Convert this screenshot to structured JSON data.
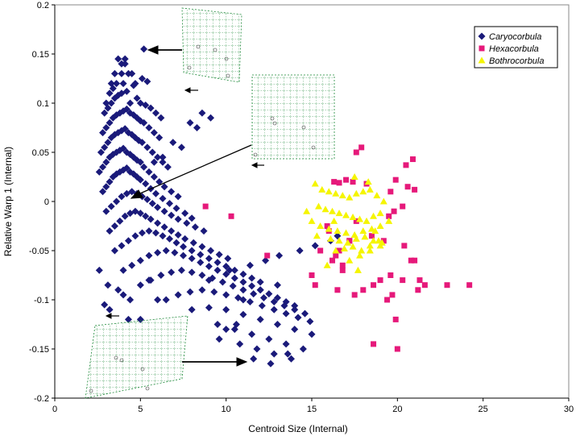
{
  "chart_data": {
    "type": "scatter",
    "xlabel": "Centroid Size (Internal)",
    "ylabel": "Relative Warp 1 (Internal)",
    "xlim": [
      0,
      30
    ],
    "ylim": [
      -0.2,
      0.2
    ],
    "x_ticks": [
      "0",
      "5",
      "10",
      "15",
      "20",
      "25",
      "30"
    ],
    "y_ticks": [
      "0.2",
      "0.15",
      "0.1",
      "0.05",
      "0",
      "-0.05",
      "-0.1",
      "-0.15",
      "-0.2"
    ],
    "grid": false,
    "legend_position": "top-right",
    "series": [
      {
        "name": "Caryocorbula",
        "marker": "diamond",
        "color": "#1a1a7a",
        "count_note": "dense cloud; representative sample of points",
        "x": [
          5.2,
          3.9,
          4.1,
          3.6,
          4.3,
          5.1,
          4.7,
          3.2,
          3.0,
          3.4,
          4.0,
          4.6,
          5.4,
          2.9,
          3.1,
          3.3,
          3.5,
          3.7,
          3.9,
          4.2,
          4.4,
          4.8,
          5.0,
          5.3,
          5.6,
          5.9,
          6.2,
          2.8,
          3.0,
          3.2,
          3.4,
          3.6,
          3.8,
          4.0,
          4.2,
          4.4,
          4.6,
          4.8,
          5.0,
          5.2,
          5.5,
          5.8,
          6.1,
          2.7,
          2.9,
          3.1,
          3.3,
          3.5,
          3.7,
          3.9,
          4.1,
          4.3,
          4.5,
          4.7,
          4.9,
          5.1,
          5.4,
          5.7,
          6.0,
          6.3,
          6.6,
          2.6,
          2.8,
          3.0,
          3.2,
          3.4,
          3.6,
          3.8,
          4.0,
          4.2,
          4.4,
          4.6,
          4.8,
          5.0,
          5.2,
          5.5,
          5.8,
          6.1,
          6.4,
          6.8,
          7.2,
          2.8,
          3.0,
          3.2,
          3.4,
          3.6,
          3.8,
          4.0,
          4.2,
          4.4,
          4.6,
          4.8,
          5.0,
          5.3,
          5.6,
          5.9,
          6.3,
          6.7,
          7.1,
          7.6,
          8.0,
          3.0,
          3.3,
          3.6,
          3.9,
          4.2,
          4.5,
          4.8,
          5.1,
          5.4,
          5.7,
          6.0,
          6.4,
          6.8,
          7.2,
          7.7,
          8.2,
          8.7,
          3.2,
          3.5,
          3.8,
          4.1,
          4.4,
          4.7,
          5.0,
          5.3,
          5.6,
          6.0,
          6.4,
          6.8,
          7.2,
          7.6,
          8.1,
          8.6,
          9.1,
          9.6,
          10.1,
          3.5,
          3.9,
          4.3,
          4.7,
          5.1,
          5.5,
          5.9,
          6.3,
          6.7,
          7.1,
          7.5,
          8.0,
          8.5,
          9.0,
          9.5,
          10.0,
          10.5,
          11.0,
          11.5,
          12.0,
          4.0,
          4.5,
          5.0,
          5.5,
          6.0,
          6.5,
          7.0,
          7.5,
          8.0,
          8.5,
          9.0,
          9.5,
          10.0,
          10.5,
          11.0,
          11.5,
          12.0,
          12.5,
          13.0,
          13.5,
          14.0,
          5.0,
          5.6,
          6.2,
          6.8,
          7.4,
          8.0,
          8.6,
          9.2,
          9.8,
          10.4,
          11.0,
          11.6,
          12.2,
          12.8,
          13.4,
          14.0,
          14.6,
          6.5,
          7.2,
          7.9,
          8.6,
          9.3,
          10.0,
          10.7,
          11.4,
          12.1,
          12.8,
          13.5,
          14.2,
          14.9,
          8.0,
          9.0,
          10.0,
          11.0,
          12.0,
          13.0,
          14.0,
          15.0,
          9.5,
          10.5,
          11.5,
          12.5,
          13.5,
          14.5,
          10.8,
          11.8,
          12.8,
          13.8,
          11.6,
          12.6,
          13.6,
          8.6,
          9.1,
          7.9,
          8.3,
          6.9,
          7.4,
          6.3,
          5.8,
          2.6,
          4.4,
          3.1,
          5.5,
          3.7,
          4.0,
          2.9,
          3.2,
          4.3,
          5.0,
          6.0,
          9.0,
          10.2,
          11.4,
          12.3,
          13.1,
          14.3,
          15.2,
          16.1,
          16.5,
          11.0,
          12.0,
          13.0,
          10.0,
          9.6,
          10.6,
          4.5,
          3.9,
          3.7,
          4.1,
          3.5,
          3.3
        ],
        "y": [
          0.155,
          0.14,
          0.145,
          0.12,
          0.13,
          0.125,
          0.12,
          0.11,
          0.1,
          0.115,
          0.12,
          0.118,
          0.122,
          0.09,
          0.095,
          0.1,
          0.105,
          0.108,
          0.11,
          0.112,
          0.1,
          0.105,
          0.1,
          0.098,
          0.095,
          0.09,
          0.085,
          0.07,
          0.075,
          0.08,
          0.085,
          0.088,
          0.09,
          0.092,
          0.094,
          0.09,
          0.088,
          0.085,
          0.082,
          0.08,
          0.075,
          0.07,
          0.065,
          0.05,
          0.055,
          0.06,
          0.065,
          0.068,
          0.07,
          0.072,
          0.074,
          0.07,
          0.068,
          0.065,
          0.062,
          0.06,
          0.055,
          0.05,
          0.045,
          0.04,
          0.035,
          0.03,
          0.035,
          0.04,
          0.045,
          0.048,
          0.05,
          0.052,
          0.054,
          0.05,
          0.048,
          0.045,
          0.042,
          0.04,
          0.035,
          0.03,
          0.025,
          0.02,
          0.015,
          0.01,
          0.005,
          0.01,
          0.015,
          0.02,
          0.025,
          0.028,
          0.03,
          0.032,
          0.034,
          0.03,
          0.028,
          0.025,
          0.022,
          0.018,
          0.013,
          0.008,
          0.003,
          -0.002,
          -0.007,
          -0.012,
          -0.017,
          -0.01,
          -0.005,
          0.0,
          0.005,
          0.008,
          0.01,
          0.008,
          0.005,
          0.002,
          -0.002,
          -0.006,
          -0.01,
          -0.014,
          -0.018,
          -0.022,
          -0.026,
          -0.03,
          -0.03,
          -0.025,
          -0.02,
          -0.015,
          -0.012,
          -0.01,
          -0.012,
          -0.015,
          -0.018,
          -0.022,
          -0.026,
          -0.03,
          -0.034,
          -0.038,
          -0.042,
          -0.046,
          -0.05,
          -0.054,
          -0.058,
          -0.05,
          -0.045,
          -0.04,
          -0.035,
          -0.032,
          -0.03,
          -0.032,
          -0.035,
          -0.038,
          -0.042,
          -0.046,
          -0.05,
          -0.054,
          -0.058,
          -0.062,
          -0.066,
          -0.07,
          -0.074,
          -0.078,
          -0.082,
          -0.07,
          -0.065,
          -0.06,
          -0.055,
          -0.052,
          -0.05,
          -0.052,
          -0.055,
          -0.058,
          -0.062,
          -0.066,
          -0.07,
          -0.074,
          -0.078,
          -0.082,
          -0.086,
          -0.09,
          -0.094,
          -0.098,
          -0.102,
          -0.106,
          -0.085,
          -0.08,
          -0.075,
          -0.072,
          -0.07,
          -0.072,
          -0.075,
          -0.078,
          -0.082,
          -0.086,
          -0.09,
          -0.094,
          -0.098,
          -0.102,
          -0.106,
          -0.11,
          -0.114,
          -0.1,
          -0.095,
          -0.092,
          -0.09,
          -0.092,
          -0.095,
          -0.098,
          -0.102,
          -0.106,
          -0.11,
          -0.114,
          -0.118,
          -0.122,
          -0.11,
          -0.108,
          -0.11,
          -0.115,
          -0.12,
          -0.125,
          -0.13,
          -0.135,
          -0.125,
          -0.13,
          -0.135,
          -0.14,
          -0.145,
          -0.15,
          -0.145,
          -0.15,
          -0.155,
          -0.16,
          -0.16,
          -0.165,
          -0.155,
          0.09,
          0.085,
          0.08,
          0.075,
          0.06,
          0.055,
          0.045,
          0.04,
          -0.07,
          -0.1,
          -0.085,
          -0.08,
          -0.09,
          -0.095,
          -0.105,
          -0.11,
          -0.12,
          -0.12,
          -0.1,
          -0.08,
          -0.07,
          -0.065,
          -0.06,
          -0.055,
          -0.05,
          -0.045,
          -0.04,
          -0.035,
          -0.1,
          -0.09,
          -0.085,
          -0.13,
          -0.14,
          -0.125,
          0.13,
          0.13,
          0.145,
          0.14,
          0.13,
          0.12
        ]
      },
      {
        "name": "Hexacorbula",
        "marker": "square",
        "color": "#e6197a",
        "x": [
          17.9,
          17.6,
          20.9,
          20.5,
          19.9,
          20.6,
          21.0,
          19.6,
          18.2,
          17.4,
          17.0,
          16.6,
          16.3,
          15.9,
          17.2,
          20.3,
          19.8,
          19.5,
          16.6,
          16.4,
          16.2,
          16.8,
          17.6,
          18.5,
          19.2,
          20.4,
          21.0,
          21.6,
          21.2,
          20.3,
          19.6,
          19.0,
          18.6,
          18.0,
          17.5,
          15.5,
          15.2,
          15.0,
          20.8,
          21.3,
          22.9,
          24.2,
          19.7,
          19.4,
          18.6,
          20.0,
          16.5,
          8.8,
          10.3,
          12.4,
          16.8,
          19.9,
          16.0,
          17.2
        ],
        "y": [
          0.055,
          0.05,
          0.043,
          0.037,
          0.022,
          0.015,
          0.012,
          0.01,
          0.018,
          0.02,
          0.022,
          0.019,
          0.02,
          -0.025,
          -0.04,
          -0.005,
          -0.01,
          -0.015,
          -0.05,
          -0.055,
          -0.06,
          -0.065,
          -0.02,
          -0.035,
          -0.04,
          -0.045,
          -0.06,
          -0.085,
          -0.09,
          -0.08,
          -0.075,
          -0.08,
          -0.085,
          -0.09,
          -0.095,
          -0.05,
          -0.085,
          -0.075,
          -0.06,
          -0.08,
          -0.085,
          -0.085,
          -0.095,
          -0.1,
          -0.145,
          -0.15,
          -0.09,
          -0.005,
          -0.015,
          -0.055,
          -0.07,
          -0.12,
          -0.03,
          -0.04
        ]
      },
      {
        "name": "Bothrocorbula",
        "marker": "triangle",
        "color": "#f5f500",
        "x": [
          15.2,
          15.6,
          16.0,
          16.4,
          16.8,
          17.2,
          17.6,
          18.0,
          18.4,
          18.8,
          19.2,
          15.4,
          15.8,
          16.2,
          16.6,
          17.0,
          17.4,
          17.8,
          18.2,
          18.6,
          19.0,
          15.0,
          15.5,
          16.0,
          16.5,
          17.0,
          17.5,
          18.0,
          18.5,
          19.0,
          19.5,
          16.1,
          16.6,
          17.1,
          17.6,
          18.1,
          18.6,
          19.1,
          16.4,
          16.9,
          17.4,
          17.9,
          18.4,
          18.9,
          17.2,
          17.8,
          18.4,
          19.0,
          15.3,
          15.9,
          14.7,
          16.3,
          17.5,
          18.3,
          17.7,
          18.7
        ],
        "y": [
          0.018,
          0.012,
          0.01,
          0.008,
          0.006,
          0.004,
          0.008,
          0.01,
          0.012,
          0.006,
          0.0,
          -0.005,
          -0.008,
          -0.01,
          -0.012,
          -0.014,
          -0.016,
          -0.018,
          -0.02,
          -0.015,
          -0.012,
          -0.02,
          -0.025,
          -0.028,
          -0.03,
          -0.032,
          -0.034,
          -0.03,
          -0.028,
          -0.025,
          -0.02,
          -0.038,
          -0.04,
          -0.042,
          -0.038,
          -0.036,
          -0.04,
          -0.042,
          -0.05,
          -0.048,
          -0.046,
          -0.05,
          -0.045,
          -0.04,
          -0.06,
          -0.055,
          -0.05,
          -0.045,
          -0.035,
          -0.065,
          -0.01,
          -0.02,
          0.025,
          0.02,
          -0.07,
          -0.03
        ]
      }
    ]
  }
}
